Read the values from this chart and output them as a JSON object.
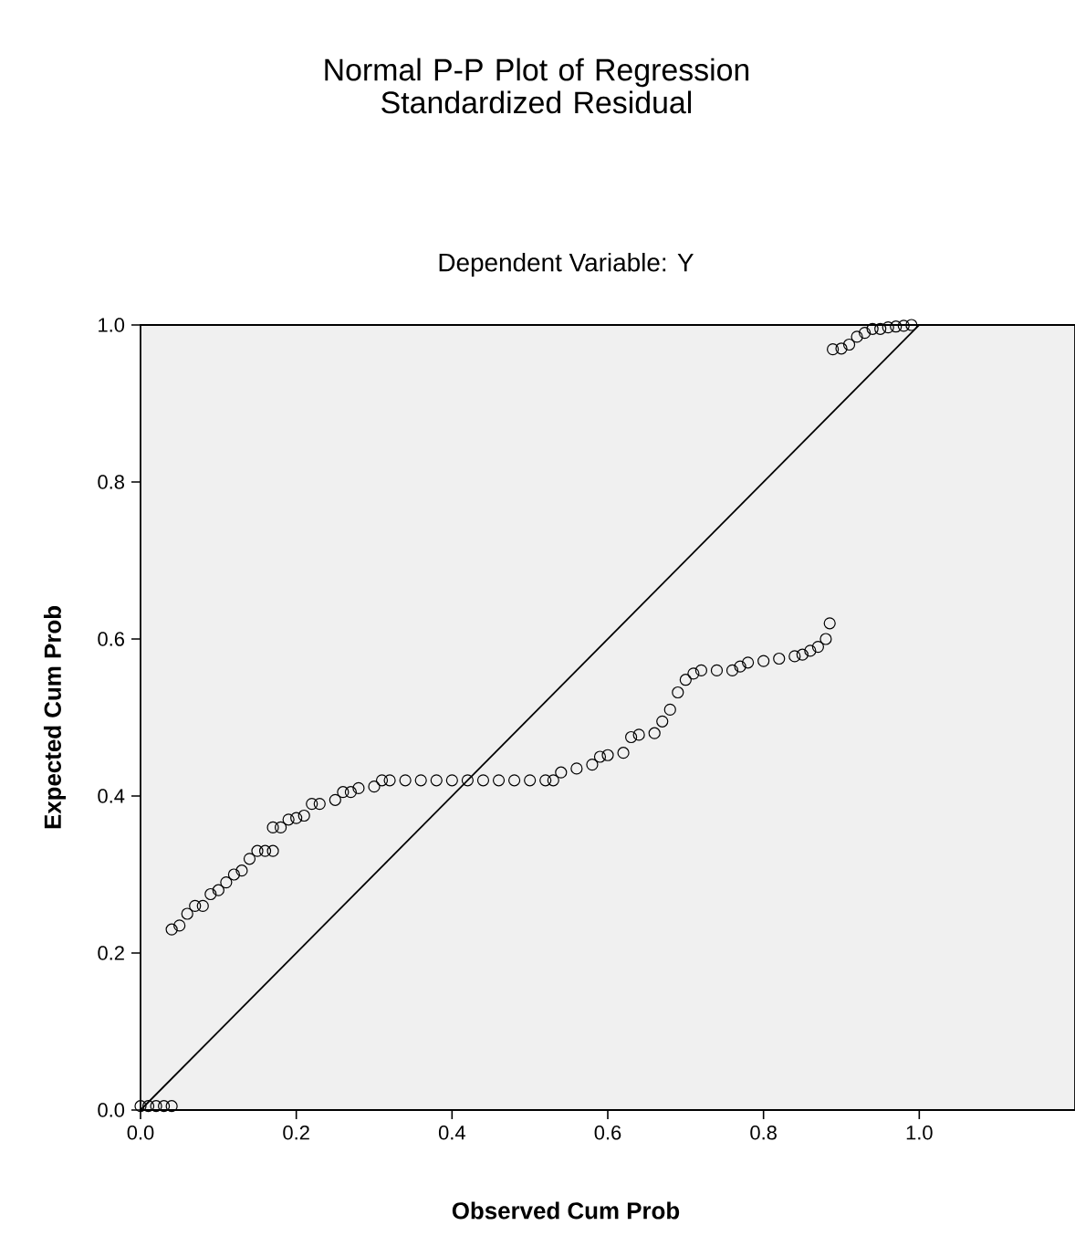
{
  "chart_data": {
    "type": "scatter",
    "title": "Normal P-P Plot of Regression Standardized Residual",
    "subtitle": "Dependent Variable: Y",
    "xlabel": "Observed Cum Prob",
    "ylabel": "Expected Cum Prob",
    "xlim": [
      0,
      1.2
    ],
    "ylim": [
      0,
      1
    ],
    "xticks": [
      {
        "value": 0,
        "label": "0.0"
      },
      {
        "value": 0.2,
        "label": "0.2"
      },
      {
        "value": 0.4,
        "label": "0.4"
      },
      {
        "value": 0.6,
        "label": "0.6"
      },
      {
        "value": 0.8,
        "label": "0.8"
      },
      {
        "value": 1,
        "label": "1.0"
      }
    ],
    "yticks": [
      {
        "value": 0,
        "label": "0.0"
      },
      {
        "value": 0.2,
        "label": "0.2"
      },
      {
        "value": 0.4,
        "label": "0.4"
      },
      {
        "value": 0.6,
        "label": "0.6"
      },
      {
        "value": 0.8,
        "label": "0.8"
      },
      {
        "value": 1,
        "label": "1.0"
      }
    ],
    "marker": "circle",
    "series": [
      {
        "color": "#000000",
        "x": [
          0.0,
          0.01,
          0.02,
          0.03,
          0.04,
          0.04,
          0.05,
          0.06,
          0.07,
          0.08,
          0.09,
          0.1,
          0.11,
          0.12,
          0.13,
          0.14,
          0.15,
          0.16,
          0.17,
          0.17,
          0.18,
          0.19,
          0.2,
          0.21,
          0.22,
          0.23,
          0.25,
          0.26,
          0.27,
          0.28,
          0.3,
          0.31,
          0.32,
          0.34,
          0.36,
          0.38,
          0.4,
          0.42,
          0.44,
          0.46,
          0.48,
          0.5,
          0.52,
          0.53,
          0.54,
          0.56,
          0.58,
          0.59,
          0.6,
          0.62,
          0.63,
          0.64,
          0.66,
          0.67,
          0.68,
          0.69,
          0.7,
          0.71,
          0.72,
          0.74,
          0.76,
          0.77,
          0.78,
          0.8,
          0.82,
          0.84,
          0.85,
          0.86,
          0.87,
          0.88,
          0.885,
          0.889,
          0.9,
          0.91,
          0.92,
          0.93,
          0.94,
          0.95,
          0.96,
          0.97,
          0.98,
          0.99
        ],
        "values": [
          0.005,
          0.005,
          0.005,
          0.005,
          0.005,
          0.23,
          0.235,
          0.25,
          0.26,
          0.26,
          0.275,
          0.28,
          0.29,
          0.3,
          0.305,
          0.32,
          0.33,
          0.33,
          0.33,
          0.36,
          0.36,
          0.37,
          0.372,
          0.375,
          0.39,
          0.39,
          0.395,
          0.405,
          0.405,
          0.41,
          0.412,
          0.42,
          0.42,
          0.42,
          0.42,
          0.42,
          0.42,
          0.42,
          0.42,
          0.42,
          0.42,
          0.42,
          0.42,
          0.42,
          0.43,
          0.435,
          0.44,
          0.45,
          0.452,
          0.455,
          0.475,
          0.478,
          0.48,
          0.495,
          0.51,
          0.532,
          0.548,
          0.556,
          0.56,
          0.56,
          0.56,
          0.565,
          0.57,
          0.572,
          0.575,
          0.578,
          0.58,
          0.585,
          0.59,
          0.6,
          0.62,
          0.969,
          0.97,
          0.975,
          0.985,
          0.99,
          0.995,
          0.995,
          0.997,
          0.998,
          0.999,
          1.0
        ]
      },
      {
        "type": "line",
        "color": "#000000",
        "marker": "none",
        "x": [
          0,
          1
        ],
        "values": [
          0,
          1
        ]
      }
    ]
  }
}
